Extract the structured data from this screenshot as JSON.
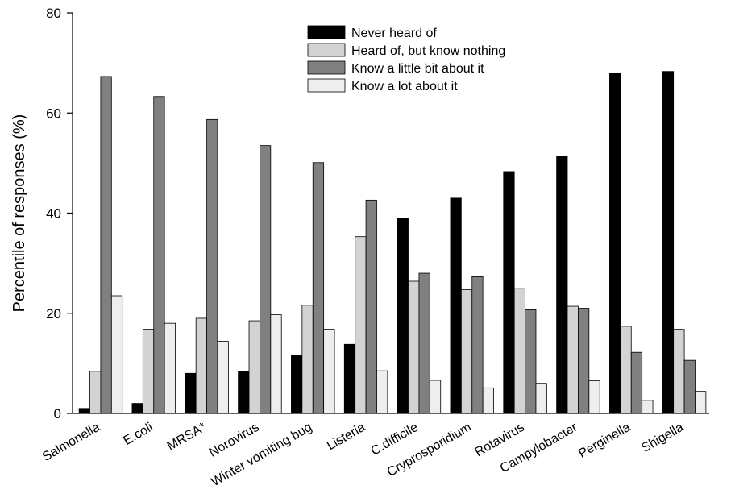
{
  "chart_data": {
    "type": "bar",
    "ylabel": "Percentile of responses (%)",
    "xlabel": "",
    "ylim": [
      0,
      80
    ],
    "yticks": [
      0,
      20,
      40,
      60,
      80
    ],
    "grid": false,
    "legend_position": "top-center",
    "categories": [
      "Salmonella",
      "E.coli",
      "MRSA*",
      "Norovirus",
      "Winter vomiting bug",
      "Listeria",
      "C.difficile",
      "Cryprosporidium",
      "Rotavirus",
      "Campylobacter",
      "Perginella",
      "Shigella"
    ],
    "series": [
      {
        "name": "Never heard of",
        "color": "#000000",
        "values": [
          1.0,
          2.0,
          8.0,
          8.4,
          11.6,
          13.8,
          39.0,
          43.0,
          48.3,
          51.3,
          68.0,
          68.3
        ]
      },
      {
        "name": "Heard of, but know nothing",
        "color": "#d3d3d3",
        "values": [
          8.4,
          16.8,
          19.0,
          18.5,
          21.6,
          35.3,
          26.4,
          24.7,
          25.0,
          21.4,
          17.4,
          16.8
        ]
      },
      {
        "name": "Know a little bit about it",
        "color": "#808080",
        "values": [
          67.3,
          63.3,
          58.7,
          53.5,
          50.1,
          42.6,
          28.0,
          27.3,
          20.7,
          21.0,
          12.2,
          10.6
        ]
      },
      {
        "name": "Know a lot about it",
        "color": "#eeeeee",
        "values": [
          23.5,
          18.0,
          14.4,
          19.7,
          16.8,
          8.5,
          6.6,
          5.1,
          6.0,
          6.5,
          2.6,
          4.4
        ]
      }
    ]
  }
}
